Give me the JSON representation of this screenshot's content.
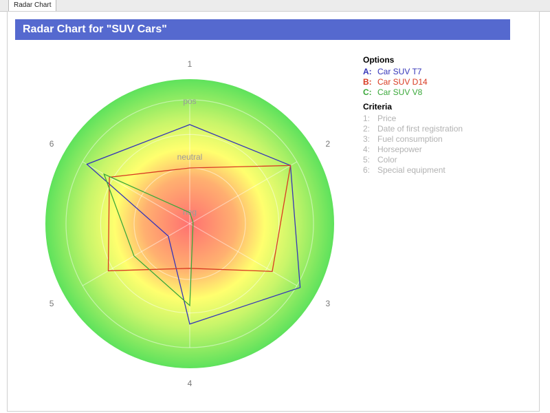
{
  "tab": {
    "label": "Radar Chart"
  },
  "chart_data": {
    "type": "radar",
    "title": "Radar Chart for  \"SUV Cars\"",
    "axes": [
      "1",
      "2",
      "3",
      "4",
      "5",
      "6"
    ],
    "levels": [
      "neg",
      "neutral",
      "pos"
    ],
    "scale": [
      0,
      1
    ],
    "background": "gradient red (center) to yellow to green (outer)",
    "series": [
      {
        "key": "A:",
        "name": "Car SUV T7",
        "color": "#3535b8",
        "values": [
          0.8,
          0.94,
          1.03,
          0.81,
          0.2,
          0.96
        ]
      },
      {
        "key": "B:",
        "name": "Car SUV D14",
        "color": "#d83a22",
        "values": [
          0.45,
          0.94,
          0.77,
          0.36,
          0.76,
          0.75
        ]
      },
      {
        "key": "C:",
        "name": "Car SUV V8",
        "color": "#3aa83a",
        "values": [
          0.09,
          0.03,
          0.03,
          0.66,
          0.52,
          0.8
        ]
      }
    ]
  },
  "legend": {
    "options_title": "Options",
    "criteria_title": "Criteria",
    "criteria": [
      {
        "key": "1:",
        "label": "Price"
      },
      {
        "key": "2:",
        "label": "Date of first registration"
      },
      {
        "key": "3:",
        "label": "Fuel consumption"
      },
      {
        "key": "4:",
        "label": "Horsepower"
      },
      {
        "key": "5:",
        "label": "Color"
      },
      {
        "key": "6:",
        "label": "Special equipment"
      }
    ]
  }
}
